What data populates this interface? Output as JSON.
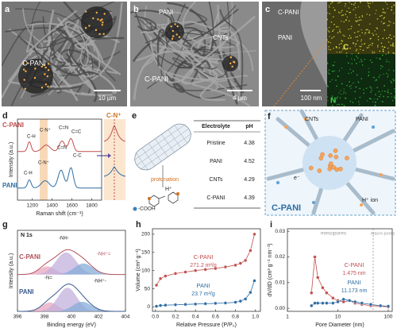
{
  "panels": {
    "a": {
      "label": "a",
      "name": "C-PANI",
      "scale": "10 µm"
    },
    "b": {
      "label": "b",
      "labels": [
        "PANI",
        "CNTs",
        "C-PANI"
      ],
      "scale": "4 µm"
    },
    "c": {
      "label": "c",
      "labels": [
        "C-PANI",
        "PANI"
      ],
      "scale": "100 nm",
      "maps": [
        "C",
        "N"
      ]
    },
    "e": {
      "label": "e",
      "table": {
        "header": [
          "Electrolyte",
          "pH"
        ],
        "rows": [
          [
            "Pristine",
            4.38
          ],
          [
            "PANI",
            4.52
          ],
          [
            "CNTs",
            4.29
          ],
          [
            "C-PANI",
            4.39
          ]
        ]
      },
      "labels": [
        "protonation",
        "H⁺",
        "-COOH"
      ]
    },
    "f": {
      "label": "f",
      "labels": [
        "CNTs",
        "PANI",
        "e⁻",
        "H⁺ ion",
        "C-PANI"
      ]
    }
  },
  "chart_data": [
    {
      "type": "spectrum",
      "label": "d",
      "xlabel": "Raman shift (cm⁻¹)",
      "ylabel": "Intensity (a.u.)",
      "xlim": [
        1050,
        1900
      ],
      "ylim": [
        0,
        10
      ],
      "xticks": [
        1200,
        1400,
        1600,
        1800
      ],
      "series": [
        {
          "name": "C-PANI",
          "color": "#c0504d",
          "offset": 6,
          "peaks": [
            {
              "center": 1170,
              "height": 1.2,
              "width": 18
            },
            {
              "center": 1340,
              "height": 0.8,
              "width": 40
            },
            {
              "center": 1500,
              "height": 1.3,
              "width": 28
            },
            {
              "center": 1590,
              "height": 1.6,
              "width": 24
            }
          ]
        },
        {
          "name": "PANI",
          "color": "#2e6da4",
          "offset": 1.5,
          "peaks": [
            {
              "center": 1170,
              "height": 1.0,
              "width": 18
            },
            {
              "center": 1330,
              "height": 0.9,
              "width": 40
            },
            {
              "center": 1490,
              "height": 2.2,
              "width": 30
            },
            {
              "center": 1590,
              "height": 2.5,
              "width": 24
            }
          ]
        }
      ],
      "annotations": [
        "C-H",
        "C-N⁺",
        "C=N",
        "C=C",
        "C-H",
        "C-N⁺",
        "C=N",
        "C-C"
      ],
      "inset": "C-N⁺"
    },
    {
      "type": "spectrum",
      "label": "g",
      "title": "N 1s",
      "xlabel": "Binding energy (eV)",
      "ylabel": "Intensity (a.u.)",
      "xlim": [
        396,
        404
      ],
      "ylim": [
        0,
        11
      ],
      "xticks": [
        396,
        398,
        400,
        402,
        404
      ],
      "fill": true,
      "series": [
        {
          "name": "C-PANI",
          "color": "#b0505a",
          "offset": 5,
          "peaks": [
            {
              "center": 398.2,
              "height": 1.1,
              "width": 0.6,
              "color": "#eaa6bf"
            },
            {
              "center": 399.6,
              "height": 3.0,
              "width": 0.75,
              "color": "#c3b0dc"
            },
            {
              "center": 400.9,
              "height": 1.5,
              "width": 0.7,
              "color": "#86acd8"
            }
          ]
        },
        {
          "name": "PANI",
          "color": "#3a5a90",
          "offset": 0,
          "peaks": [
            {
              "center": 398.4,
              "height": 1.2,
              "width": 0.6,
              "color": "#eaa6bf"
            },
            {
              "center": 399.7,
              "height": 3.2,
              "width": 0.7,
              "color": "#c3b0dc"
            },
            {
              "center": 400.8,
              "height": 1.3,
              "width": 0.7,
              "color": "#86acd8"
            }
          ]
        }
      ],
      "annotations": [
        "-NH-",
        "-NH⁺=",
        "-N=",
        "-NH⁺-"
      ]
    },
    {
      "type": "line",
      "label": "h",
      "xlabel": "Relative Pressure (P/P₀)",
      "ylabel": "Volume (cm³ g⁻¹)",
      "xlim": [
        -0.03,
        1.05
      ],
      "ylim": [
        -12,
        215
      ],
      "xticks": [
        {
          "value": 0,
          "label": "0.0"
        },
        0.2,
        0.4,
        0.6,
        0.8,
        {
          "value": 1,
          "label": "1.0"
        }
      ],
      "yticks": [
        0,
        50,
        100,
        150,
        200
      ],
      "x": [
        0.01,
        0.05,
        0.1,
        0.2,
        0.3,
        0.4,
        0.5,
        0.6,
        0.7,
        0.8,
        0.85,
        0.9,
        0.95,
        0.99
      ],
      "series": [
        {
          "name": "C-PANI",
          "note": "271.2 m²/g",
          "color": "#c0504d",
          "values": [
            60,
            78,
            85,
            92,
            96,
            100,
            103,
            106,
            110,
            115,
            120,
            128,
            155,
            200
          ]
        },
        {
          "name": "PANI",
          "note": "23.7 m²/g",
          "color": "#2e6da4",
          "values": [
            2,
            4,
            5,
            6,
            7,
            8,
            9,
            10,
            11,
            13,
            16,
            22,
            40,
            72
          ]
        }
      ]
    },
    {
      "type": "line",
      "label": "i",
      "xlabel": "Pore Diameter (nm)",
      "ylabel": "dV/dD (cm³ g⁻¹ nm⁻¹)",
      "xscale": "log",
      "xlim": [
        1,
        120
      ],
      "ylim": [
        -0.0012,
        0.031
      ],
      "xticks": [
        1,
        10,
        100
      ],
      "yticks": [
        {
          "value": 0,
          "label": "0.00"
        },
        0.01,
        0.02,
        0.03
      ],
      "regions": [
        "mesopores",
        "macro pores"
      ],
      "x": [
        3,
        3.5,
        4,
        5,
        6,
        8,
        10,
        13,
        17,
        22,
        30,
        45,
        70,
        100
      ],
      "series": [
        {
          "name": "C-PANI",
          "note": "1.475 nm",
          "color": "#c0504d",
          "values": [
            0.006,
            0.02,
            0.012,
            0.008,
            0.006,
            0.004,
            0.003,
            0.0025,
            0.003,
            0.002,
            0.0015,
            0.001,
            0.0008,
            0.0005
          ]
        },
        {
          "name": "PANI",
          "note": "11.173 nm",
          "color": "#2e6da4",
          "values": [
            0.001,
            0.002,
            0.002,
            0.002,
            0.002,
            0.002,
            0.0025,
            0.0035,
            0.003,
            0.0025,
            0.002,
            0.0015,
            0.001,
            0.0008
          ]
        }
      ]
    }
  ]
}
